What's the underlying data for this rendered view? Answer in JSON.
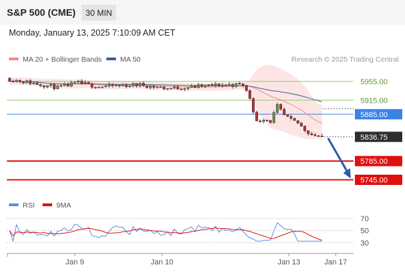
{
  "header": {
    "symbol": "S&P 500 (CME)",
    "timeframe": "30 MIN"
  },
  "timestamp": "Monday, January 13, 2025 7:10:09 AM CET",
  "colors": {
    "bollinger": "#f28b8b",
    "bollinger_fill": "#fde5e5",
    "ma50": "#3a5f9c",
    "resistance_green": "#8dc96b",
    "pivot_blue": "#3b82e6",
    "support_red": "#e01010",
    "bull_candle": "#6a9a4a",
    "bear_candle": "#c23030",
    "rsi": "#5a8fe0",
    "rsi_ma": "#e01010",
    "arrow": "#2a5ca8"
  },
  "chart_data": [
    {
      "type": "candlestick",
      "legend": [
        {
          "label": "MA 20 + Bollinger Bands",
          "color": "#f28b8b"
        },
        {
          "label": "MA 50",
          "color": "#3a5f9c"
        }
      ],
      "legend_placement": "top-left",
      "watermark": "Research © 2025 Trading Central",
      "ylim": [
        5715,
        5990
      ],
      "last_price": "5836.75",
      "levels": [
        {
          "value": 5955,
          "label": "5955.00",
          "kind": "resistance",
          "color": "#8dc96b",
          "style": "plain"
        },
        {
          "value": 5915,
          "label": "5915.00",
          "kind": "resistance",
          "color": "#8dc96b",
          "style": "plain"
        },
        {
          "value": 5885,
          "label": "5885.00",
          "kind": "pivot",
          "color": "#3b82e6",
          "style": "box"
        },
        {
          "value": 5785,
          "label": "5785.00",
          "kind": "support",
          "color": "#e01010",
          "style": "box"
        },
        {
          "value": 5745,
          "label": "5745.00",
          "kind": "support",
          "color": "#e01010",
          "style": "box"
        }
      ],
      "projection": {
        "from_value": 5836.75,
        "to_value": 5745
      },
      "x_ticks": [
        "Jan 9",
        "Jan 10",
        "Jan 13",
        "Jan 17"
      ]
    },
    {
      "type": "line",
      "legend": [
        {
          "label": "RSI",
          "color": "#5a8fe0"
        },
        {
          "label": "9MA",
          "color": "#e01010"
        }
      ],
      "ylim": [
        10,
        80
      ],
      "yticks": [
        "70",
        "50",
        "30"
      ]
    }
  ]
}
